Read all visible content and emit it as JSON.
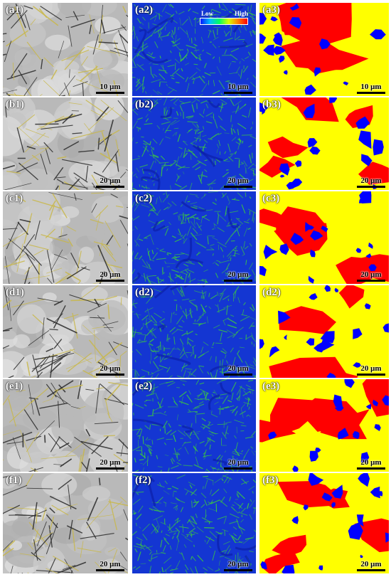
{
  "legend": {
    "low_label": "Low",
    "high_label": "High"
  },
  "rows": [
    {
      "panels": [
        {
          "label": "(a1)",
          "scale": "10 μm",
          "type": "micrograph"
        },
        {
          "label": "(a2)",
          "scale": "10 μm",
          "type": "kam"
        },
        {
          "label": "(a3)",
          "scale": "10 μm",
          "type": "phase"
        }
      ]
    },
    {
      "panels": [
        {
          "label": "(b1)",
          "scale": "20 μm",
          "type": "micrograph"
        },
        {
          "label": "(b2)",
          "scale": "20 μm",
          "type": "kam"
        },
        {
          "label": "(b3)",
          "scale": "20 μm",
          "type": "phase"
        }
      ]
    },
    {
      "panels": [
        {
          "label": "(c1)",
          "scale": "20 μm",
          "type": "micrograph"
        },
        {
          "label": "(c2)",
          "scale": "20 μm",
          "type": "kam"
        },
        {
          "label": "(c3)",
          "scale": "20 μm",
          "type": "phase"
        }
      ]
    },
    {
      "panels": [
        {
          "label": "(d1)",
          "scale": "20 μm",
          "type": "micrograph"
        },
        {
          "label": "(d2)",
          "scale": "20 μm",
          "type": "kam"
        },
        {
          "label": "(d2)",
          "scale": "20 μm",
          "type": "phase"
        }
      ]
    },
    {
      "panels": [
        {
          "label": "(e1)",
          "scale": "20 μm",
          "type": "micrograph"
        },
        {
          "label": "(e2)",
          "scale": "20 μm",
          "type": "kam"
        },
        {
          "label": "(e3)",
          "scale": "20 μm",
          "type": "phase"
        }
      ]
    },
    {
      "panels": [
        {
          "label": "(f1)",
          "scale": "20 μm",
          "type": "micrograph"
        },
        {
          "label": "(f2)",
          "scale": "20 μm",
          "type": "kam"
        },
        {
          "label": "(f3)",
          "scale": "20 μm",
          "type": "phase"
        }
      ]
    }
  ],
  "colors": {
    "micrograph_bg": "#b9b9b9",
    "micrograph_boundary": "#2a2a2a",
    "micrograph_yellow": "#c9b84a",
    "kam_base": "#1436d2",
    "kam_high": "#3ccc3c",
    "phase_yellow": "#ffff00",
    "phase_red": "#ff0000",
    "phase_blue": "#0000ff"
  }
}
